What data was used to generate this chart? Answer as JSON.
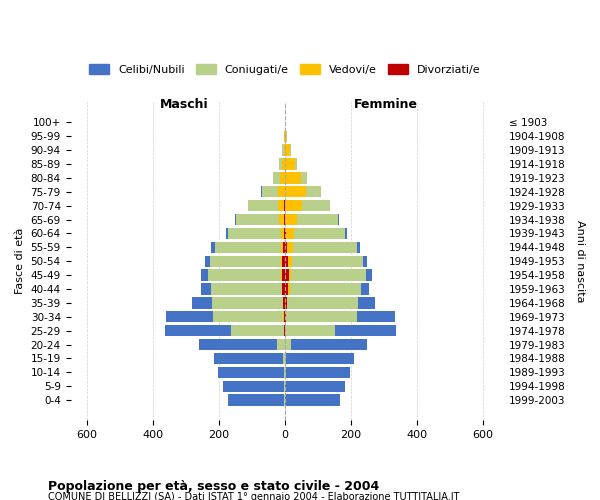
{
  "age_groups": [
    "0-4",
    "5-9",
    "10-14",
    "15-19",
    "20-24",
    "25-29",
    "30-34",
    "35-39",
    "40-44",
    "45-49",
    "50-54",
    "55-59",
    "60-64",
    "65-69",
    "70-74",
    "75-79",
    "80-84",
    "85-89",
    "90-94",
    "95-99",
    "100+"
  ],
  "birth_years": [
    "1999-2003",
    "1994-1998",
    "1989-1993",
    "1984-1988",
    "1979-1983",
    "1974-1978",
    "1969-1973",
    "1964-1968",
    "1959-1963",
    "1954-1958",
    "1949-1953",
    "1944-1948",
    "1939-1943",
    "1934-1938",
    "1929-1933",
    "1924-1928",
    "1919-1923",
    "1914-1918",
    "1909-1913",
    "1904-1908",
    "≤ 1903"
  ],
  "males": {
    "celibi": [
      170,
      185,
      200,
      210,
      235,
      200,
      140,
      60,
      30,
      20,
      15,
      10,
      5,
      5,
      2,
      2,
      1,
      0,
      0,
      0,
      0
    ],
    "coniugati": [
      2,
      2,
      3,
      5,
      25,
      160,
      215,
      215,
      215,
      220,
      215,
      200,
      160,
      130,
      90,
      50,
      20,
      10,
      5,
      1,
      0
    ],
    "vedovi": [
      0,
      0,
      0,
      0,
      0,
      0,
      1,
      1,
      2,
      3,
      5,
      8,
      10,
      15,
      20,
      20,
      15,
      8,
      3,
      1,
      0
    ],
    "divorziati": [
      0,
      0,
      0,
      0,
      0,
      2,
      3,
      5,
      8,
      10,
      8,
      5,
      3,
      2,
      1,
      0,
      0,
      0,
      0,
      0,
      0
    ]
  },
  "females": {
    "nubili": [
      165,
      180,
      195,
      205,
      230,
      185,
      115,
      50,
      25,
      18,
      12,
      8,
      5,
      3,
      2,
      1,
      0,
      0,
      0,
      0,
      0
    ],
    "coniugate": [
      2,
      2,
      3,
      5,
      20,
      150,
      215,
      215,
      215,
      225,
      215,
      195,
      155,
      125,
      85,
      45,
      18,
      8,
      3,
      1,
      0
    ],
    "vedove": [
      0,
      0,
      0,
      0,
      0,
      0,
      1,
      2,
      5,
      8,
      12,
      18,
      25,
      35,
      50,
      65,
      50,
      30,
      15,
      5,
      2
    ],
    "divorziate": [
      0,
      0,
      0,
      0,
      0,
      2,
      4,
      6,
      10,
      12,
      10,
      6,
      3,
      2,
      1,
      0,
      0,
      0,
      0,
      0,
      0
    ]
  },
  "color_celibi": "#4472c4",
  "color_coniugati": "#b8d08a",
  "color_vedovi": "#ffc000",
  "color_divorziati": "#c00000",
  "title": "Popolazione per età, sesso e stato civile - 2004",
  "subtitle": "COMUNE DI BELLIZZI (SA) - Dati ISTAT 1° gennaio 2004 - Elaborazione TUTTITALIA.IT",
  "xlabel_left": "Maschi",
  "xlabel_right": "Femmine",
  "ylabel_left": "Fasce di età",
  "ylabel_right": "Anni di nascita",
  "xlim": 650,
  "xticks": [
    -600,
    -400,
    -200,
    0,
    200,
    400,
    600
  ],
  "xtick_labels": [
    "600",
    "400",
    "200",
    "0",
    "200",
    "400",
    "600"
  ],
  "legend_labels": [
    "Celibi/Nubili",
    "Coniugati/e",
    "Vedovi/e",
    "Divorziati/e"
  ],
  "background_color": "#ffffff",
  "grid_color": "#d0d0d0"
}
